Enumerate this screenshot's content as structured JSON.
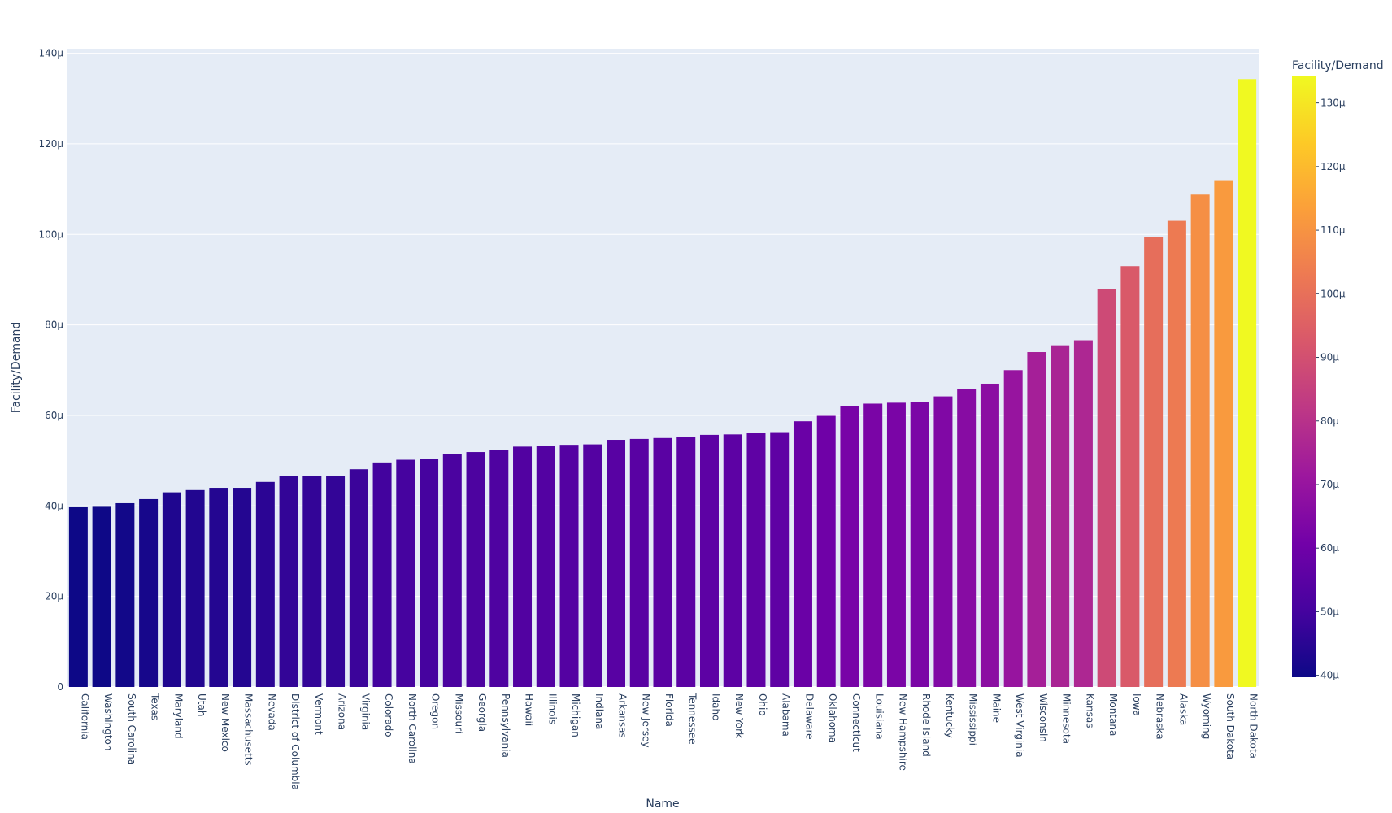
{
  "chart_data": {
    "type": "bar",
    "xlabel": "Name",
    "ylabel": "Facility/Demand",
    "ylim": [
      0,
      141
    ],
    "yticks": [
      0,
      20,
      40,
      60,
      80,
      100,
      120,
      140
    ],
    "ytick_labels": [
      "0",
      "20μ",
      "40μ",
      "60μ",
      "80μ",
      "100μ",
      "120μ",
      "140μ"
    ],
    "grid": true,
    "categories": [
      "California",
      "Washington",
      "South Carolina",
      "Texas",
      "Maryland",
      "Utah",
      "New Mexico",
      "Massachusetts",
      "Nevada",
      "District of Columbia",
      "Vermont",
      "Arizona",
      "Virginia",
      "Colorado",
      "North Carolina",
      "Oregon",
      "Missouri",
      "Georgia",
      "Pennsylvania",
      "Hawaii",
      "Illinois",
      "Michigan",
      "Indiana",
      "Arkansas",
      "New Jersey",
      "Florida",
      "Tennessee",
      "Idaho",
      "New York",
      "Ohio",
      "Alabama",
      "Delaware",
      "Oklahoma",
      "Connecticut",
      "Louisiana",
      "New Hampshire",
      "Rhode Island",
      "Kentucky",
      "Mississippi",
      "Maine",
      "West Virginia",
      "Wisconsin",
      "Minnesota",
      "Kansas",
      "Montana",
      "Iowa",
      "Nebraska",
      "Alaska",
      "Wyoming",
      "South Dakota",
      "North Dakota"
    ],
    "values": [
      39.7,
      39.8,
      40.6,
      41.5,
      43.0,
      43.5,
      44.0,
      44.0,
      45.3,
      46.7,
      46.7,
      46.7,
      48.1,
      49.6,
      50.2,
      50.3,
      51.4,
      51.9,
      52.3,
      53.1,
      53.2,
      53.5,
      53.6,
      54.6,
      54.8,
      55.0,
      55.3,
      55.7,
      55.8,
      56.1,
      56.3,
      58.7,
      59.9,
      62.1,
      62.6,
      62.8,
      63.0,
      64.2,
      65.9,
      67.0,
      70.0,
      74.0,
      75.5,
      76.6,
      88.0,
      93.0,
      99.4,
      103.0,
      108.8,
      111.8,
      134.3
    ],
    "colorscale": [
      "#0d0887",
      "#46039f",
      "#7201a8",
      "#9c179e",
      "#bd3786",
      "#d8576b",
      "#ed7953",
      "#fb9f3a",
      "#fdca26",
      "#f0f921"
    ],
    "colorbar": {
      "title": "Facility/Demand",
      "range": [
        39.7,
        134.3
      ],
      "ticks": [
        40,
        50,
        60,
        70,
        80,
        90,
        100,
        110,
        120,
        130
      ],
      "tick_labels": [
        "40μ",
        "50μ",
        "60μ",
        "70μ",
        "80μ",
        "90μ",
        "100μ",
        "110μ",
        "120μ",
        "130μ"
      ]
    },
    "plot_bg": "#e5ecf6"
  }
}
